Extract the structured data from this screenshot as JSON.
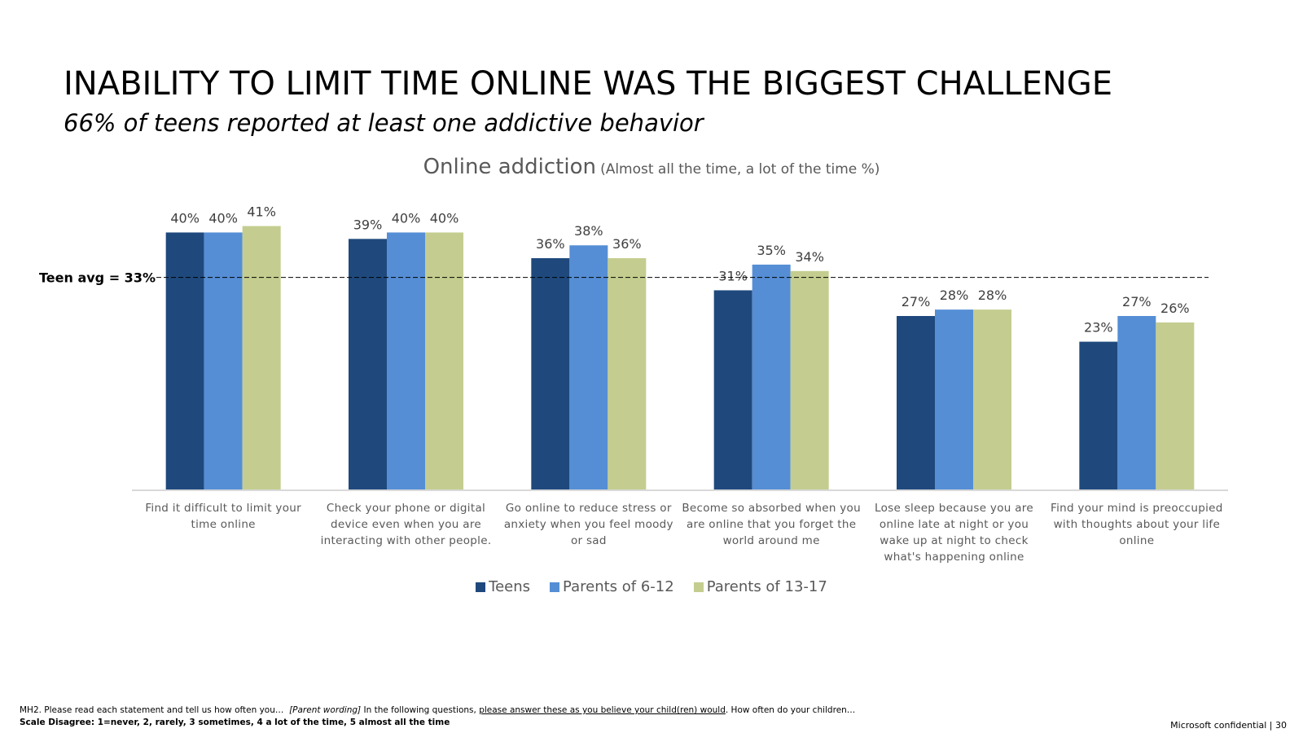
{
  "header": {
    "title": "INABILITY TO LIMIT TIME ONLINE WAS THE BIGGEST CHALLENGE",
    "subtitle": "66% of teens reported at least one addictive behavior"
  },
  "chart_data": {
    "type": "bar",
    "title": "Online addiction",
    "title_note": "(Almost all the time, a lot of the time %)",
    "categories": [
      "Find it difficult to limit your time online",
      "Check your phone or digital device even when you are interacting with other people.",
      "Go online to reduce stress or anxiety when you feel moody or sad",
      "Become so absorbed when you are online that you forget the world around me",
      "Lose sleep because you are online late at night or you wake up at night to check what's happening online",
      "Find your mind is preoccupied with thoughts about your life online"
    ],
    "series": [
      {
        "name": "Teens",
        "color": "#1f497d",
        "values": [
          40,
          39,
          36,
          31,
          27,
          23
        ],
        "value_labels": [
          "40%",
          "39%",
          "36%",
          "31%",
          "27%",
          "23%"
        ]
      },
      {
        "name": "Parents of 6-12",
        "color": "#558ed5",
        "values": [
          40,
          40,
          38,
          35,
          28,
          27
        ],
        "value_labels": [
          "40%",
          "40%",
          "38%",
          "35%",
          "28%",
          "27%"
        ]
      },
      {
        "name": "Parents of 13-17",
        "color": "#c4cd8f",
        "values": [
          41,
          40,
          36,
          34,
          28,
          26
        ],
        "value_labels": [
          "41%",
          "40%",
          "36%",
          "34%",
          "28%",
          "26%"
        ]
      }
    ],
    "ylim": [
      0,
      45
    ],
    "reference_line": {
      "value": 33,
      "label": "Teen avg = 33%"
    },
    "legend": "bottom"
  },
  "footnote": {
    "question": "MH2. Please read each statement and tell us how often you…",
    "parent_label": "[Parent wording]",
    "parent_text": "In the following questions,",
    "parent_underlined": "please answer these as you believe your child(ren) would",
    "parent_end": ". How often do your children…",
    "scale": "Scale Disagree: 1=never, 2, rarely, 3 sometimes, 4 a lot of the time, 5 almost all the time"
  },
  "footer": "Microsoft confidential | 30"
}
